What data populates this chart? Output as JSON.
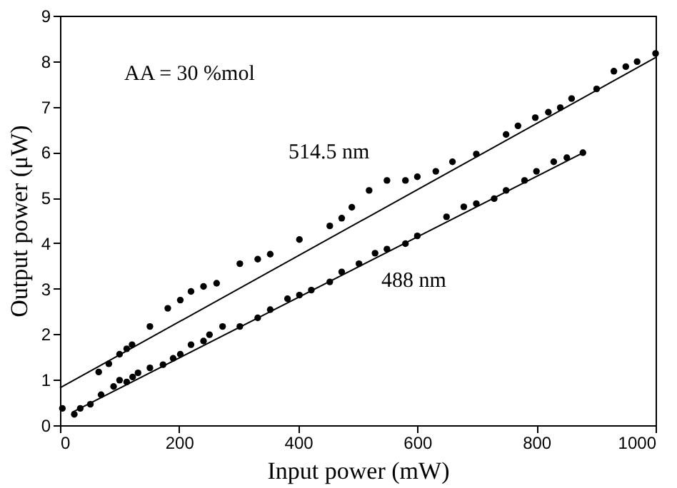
{
  "chart_data": {
    "type": "scatter",
    "xlabel": "Input power (mW)",
    "ylabel": "Output power (μW)",
    "xlim": [
      0,
      1000
    ],
    "ylim": [
      0,
      9
    ],
    "xticks": [
      0,
      200,
      400,
      600,
      800,
      1000
    ],
    "yticks": [
      0,
      1,
      2,
      3,
      4,
      5,
      6,
      7,
      8,
      9
    ],
    "grid": false,
    "marker": "circle",
    "annotations": [
      "AA = 30 %mol",
      "514.5 nm",
      "488 nm"
    ],
    "series": [
      {
        "color": "#000000",
        "x": [
          4,
          65,
          82,
          100,
          112,
          121,
          151,
          181,
          202,
          220,
          241,
          263,
          302,
          332,
          353,
          402,
          453,
          473,
          490,
          519,
          549,
          580,
          600,
          631,
          659,
          699,
          749,
          769,
          798,
          820,
          840,
          859,
          901,
          930,
          950,
          969,
          1000
        ],
        "values": [
          0.37,
          1.17,
          1.35,
          1.56,
          1.68,
          1.77,
          2.17,
          2.57,
          2.75,
          2.94,
          3.05,
          3.12,
          3.55,
          3.65,
          3.76,
          4.08,
          4.38,
          4.55,
          4.79,
          5.16,
          5.38,
          5.38,
          5.46,
          5.58,
          5.79,
          5.96,
          6.39,
          6.58,
          6.76,
          6.88,
          6.98,
          7.18,
          7.39,
          7.78,
          7.88,
          7.99,
          8.17
        ]
      },
      {
        "color": "#000000",
        "x": [
          24,
          34,
          51,
          69,
          90,
          100,
          112,
          122,
          131,
          151,
          173,
          190,
          202,
          220,
          241,
          251,
          273,
          302,
          332,
          353,
          382,
          402,
          422,
          453,
          473,
          502,
          529,
          549,
          580,
          600,
          649,
          678,
          699,
          729,
          749,
          780,
          800,
          829,
          851,
          878
        ],
        "values": [
          0.24,
          0.37,
          0.46,
          0.67,
          0.85,
          0.99,
          0.95,
          1.06,
          1.15,
          1.26,
          1.33,
          1.47,
          1.56,
          1.77,
          1.85,
          1.99,
          2.17,
          2.17,
          2.36,
          2.54,
          2.78,
          2.86,
          2.97,
          3.15,
          3.37,
          3.55,
          3.78,
          3.87,
          3.99,
          4.16,
          4.58,
          4.8,
          4.87,
          4.98,
          5.16,
          5.38,
          5.58,
          5.79,
          5.88,
          5.99
        ]
      },
      {
        "type": "line",
        "color": "#000000",
        "marker": "none",
        "line_style": "solid",
        "x": [
          0,
          1000
        ],
        "values": [
          0.82,
          8.08
        ]
      },
      {
        "type": "line",
        "color": "#000000",
        "marker": "none",
        "line_style": "solid",
        "x": [
          20,
          880
        ],
        "values": [
          0.28,
          6.0
        ]
      }
    ]
  }
}
